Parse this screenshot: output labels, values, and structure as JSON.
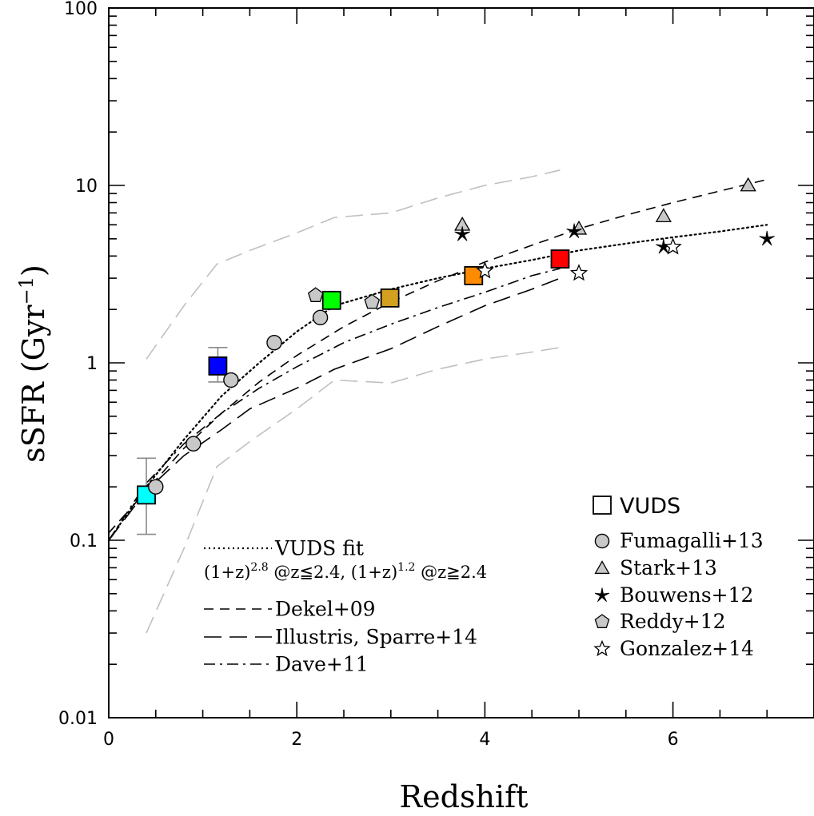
{
  "chart_data": {
    "type": "scatter",
    "xlabel": "Redshift",
    "ylabel": "sSFR (Gyr",
    "ylabel_sup": "−1",
    "ylabel_close": ")",
    "xlim": [
      0,
      7.5
    ],
    "ylim": [
      0.01,
      100
    ],
    "yscale": "log",
    "x_ticks": [
      0,
      2,
      4,
      6
    ],
    "x_tick_labels": [
      "0",
      "2",
      "4",
      "6"
    ],
    "y_ticks": [
      0.01,
      0.1,
      1,
      10,
      100
    ],
    "y_tick_labels": [
      "0.01",
      "0.1",
      "1",
      "10",
      "100"
    ],
    "grid": false,
    "lines": [
      {
        "name": "VUDS fit",
        "style": "dotted",
        "color": "#000000",
        "x": [
          0,
          0.4,
          0.8,
          1.2,
          1.6,
          2.0,
          2.4,
          3.0,
          3.5,
          4.0,
          4.5,
          5.0,
          5.5,
          6.0,
          6.5,
          7.0
        ],
        "y": [
          0.1,
          0.2,
          0.37,
          0.65,
          1.0,
          1.5,
          2.1,
          2.6,
          3.0,
          3.4,
          3.8,
          4.3,
          4.7,
          5.1,
          5.5,
          6.0
        ]
      },
      {
        "name": "Dekel+09",
        "style": "short-dash",
        "color": "#000000",
        "x": [
          0,
          0.4,
          0.8,
          1.2,
          1.6,
          2.0,
          2.5,
          3.0,
          3.5,
          4.0,
          4.5,
          5.0,
          5.5,
          6.0,
          6.5,
          7.0
        ],
        "y": [
          0.11,
          0.19,
          0.33,
          0.52,
          0.78,
          1.1,
          1.6,
          2.2,
          2.9,
          3.7,
          4.6,
          5.7,
          6.8,
          8.0,
          9.3,
          10.8
        ]
      },
      {
        "name": "Illustris, Sparre+14",
        "style": "long-dash",
        "color": "#000000",
        "x": [
          0,
          0.4,
          0.8,
          1.2,
          1.5,
          2.0,
          2.4,
          3.0,
          3.5,
          4.0,
          4.5,
          4.8
        ],
        "y": [
          0.1,
          0.19,
          0.3,
          0.42,
          0.55,
          0.72,
          0.92,
          1.2,
          1.6,
          2.1,
          2.6,
          3.0
        ]
      },
      {
        "name": "Dave+11",
        "style": "dash-dot",
        "color": "#000000",
        "x": [
          0,
          0.4,
          0.8,
          1.2,
          1.6,
          2.0,
          2.5,
          3.0,
          3.5,
          4.0,
          4.5,
          4.8
        ],
        "y": [
          0.1,
          0.21,
          0.35,
          0.52,
          0.72,
          0.95,
          1.3,
          1.65,
          2.05,
          2.5,
          3.1,
          3.4
        ]
      },
      {
        "name": "",
        "style": "long-dash",
        "color": "#c0c0c0",
        "x": [
          0.4,
          0.8,
          1.15,
          1.5,
          2.0,
          2.4,
          3.0,
          3.5,
          4.0,
          4.5,
          4.8
        ],
        "y": [
          1.05,
          2.1,
          3.6,
          4.3,
          5.4,
          6.6,
          7.0,
          8.5,
          10.0,
          11.2,
          12.2
        ]
      },
      {
        "name": "",
        "style": "long-dash",
        "color": "#c0c0c0",
        "x": [
          0.4,
          0.8,
          1.15,
          1.5,
          2.0,
          2.4,
          3.0,
          3.5,
          4.0,
          4.5,
          4.8
        ],
        "y": [
          0.03,
          0.09,
          0.26,
          0.36,
          0.55,
          0.8,
          0.77,
          0.92,
          1.05,
          1.15,
          1.22
        ]
      }
    ],
    "series": [
      {
        "name": "VUDS",
        "marker": "square",
        "points": [
          {
            "x": 0.4,
            "y": 0.18,
            "color": "#00ffff",
            "err_low": 0.108,
            "err_high": 0.29
          },
          {
            "x": 1.16,
            "y": 0.96,
            "color": "#0000ff",
            "err_low": 0.78,
            "err_high": 1.22
          },
          {
            "x": 2.37,
            "y": 2.25,
            "color": "#00ff00"
          },
          {
            "x": 2.99,
            "y": 2.32,
            "color": "#d4a020"
          },
          {
            "x": 3.88,
            "y": 3.1,
            "color": "#ff8c00"
          },
          {
            "x": 4.8,
            "y": 3.85,
            "color": "#ff0000"
          }
        ]
      },
      {
        "name": "Fumagalli+13",
        "marker": "circle",
        "color": "#c8c8c8",
        "x": [
          0.5,
          0.9,
          1.3,
          1.76,
          2.25
        ],
        "y": [
          0.2,
          0.35,
          0.8,
          1.3,
          1.8
        ]
      },
      {
        "name": "Stark+13",
        "marker": "triangle",
        "color": "#c8c8c8",
        "x": [
          3.76,
          5.0,
          5.9,
          6.8
        ],
        "y": [
          6.0,
          5.7,
          6.7,
          10.0
        ]
      },
      {
        "name": "Bouwens+12",
        "marker": "star-filled",
        "color": "#000000",
        "x": [
          3.76,
          4.95,
          5.9,
          7.0
        ],
        "y": [
          5.3,
          5.5,
          4.5,
          5.0
        ]
      },
      {
        "name": "Reddy+12",
        "marker": "pentagon",
        "color": "#c8c8c8",
        "x": [
          2.2,
          2.8
        ],
        "y": [
          2.4,
          2.2
        ]
      },
      {
        "name": "Gonzalez+14",
        "marker": "star-open",
        "color": "#ffffff",
        "x": [
          4.0,
          5.0,
          6.0
        ],
        "y": [
          3.3,
          3.2,
          4.5
        ]
      }
    ],
    "legend_lines": [
      {
        "label": "VUDS fit",
        "style": "dotted"
      },
      {
        "label": "(1+z)",
        "sup1": "2.8",
        "mid": " @z≦2.4, (1+z)",
        "sup2": "1.2",
        "tail": " @z≧2.4"
      },
      {
        "label": "Dekel+09",
        "style": "short-dash"
      },
      {
        "label": "Illustris, Sparre+14",
        "style": "long-dash"
      },
      {
        "label": "Dave+11",
        "style": "dash-dot"
      }
    ],
    "legend_markers": [
      {
        "label": "VUDS",
        "marker": "square"
      },
      {
        "label": "Fumagalli+13",
        "marker": "circle"
      },
      {
        "label": "Stark+13",
        "marker": "triangle"
      },
      {
        "label": "Bouwens+12",
        "marker": "star-filled"
      },
      {
        "label": "Reddy+12",
        "marker": "pentagon"
      },
      {
        "label": "Gonzalez+14",
        "marker": "star-open"
      }
    ]
  }
}
